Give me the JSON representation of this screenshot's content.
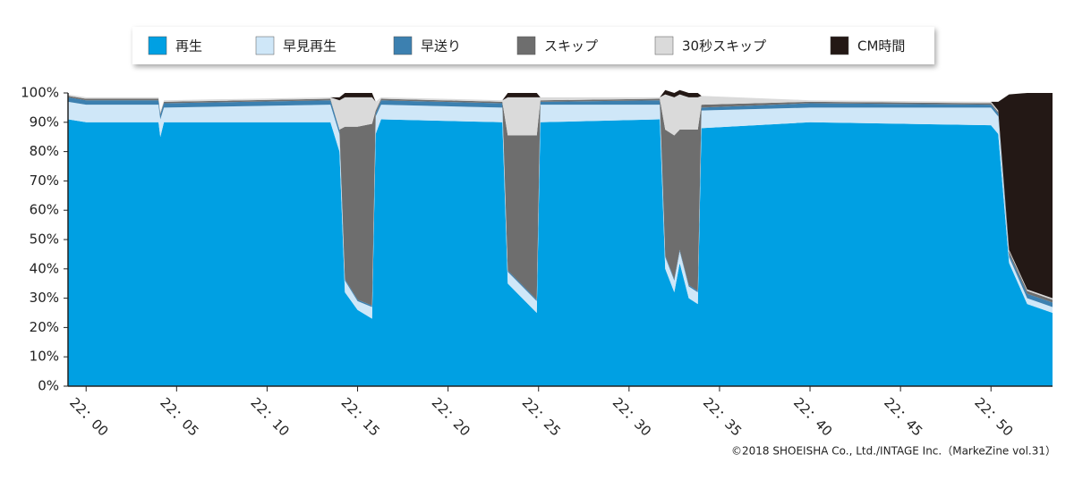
{
  "chart_data": {
    "type": "stacked_area",
    "x": [
      -1,
      0,
      4,
      4.1,
      4.3,
      13.5,
      14,
      14.3,
      15,
      15.8,
      16.0,
      16.3,
      23,
      23.3,
      24.9,
      25.1,
      31.7,
      32,
      32.5,
      32.8,
      33.3,
      33.8,
      34,
      40,
      50,
      50.4,
      51,
      52,
      53.4
    ],
    "xlim": [
      -1,
      53.4
    ],
    "xticks": [
      {
        "value": 0,
        "label": "22：00"
      },
      {
        "value": 5,
        "label": "22：05"
      },
      {
        "value": 10,
        "label": "22：10"
      },
      {
        "value": 15,
        "label": "22：15"
      },
      {
        "value": 20,
        "label": "22：20"
      },
      {
        "value": 25,
        "label": "22：25"
      },
      {
        "value": 30,
        "label": "22：30"
      },
      {
        "value": 35,
        "label": "22：35"
      },
      {
        "value": 40,
        "label": "22：40"
      },
      {
        "value": 45,
        "label": "22：45"
      },
      {
        "value": 50,
        "label": "22：50"
      }
    ],
    "ylim": [
      0,
      100
    ],
    "yticks": [
      {
        "value": 0,
        "label": "0%"
      },
      {
        "value": 10,
        "label": "10%"
      },
      {
        "value": 20,
        "label": "20%"
      },
      {
        "value": 30,
        "label": "30%"
      },
      {
        "value": 40,
        "label": "40%"
      },
      {
        "value": 50,
        "label": "50%"
      },
      {
        "value": 60,
        "label": "60%"
      },
      {
        "value": 70,
        "label": "70%"
      },
      {
        "value": 80,
        "label": "80%"
      },
      {
        "value": 90,
        "label": "90%"
      },
      {
        "value": 100,
        "label": "100%"
      }
    ],
    "series": [
      {
        "name": "再生",
        "color": "#00a0e3",
        "values": [
          91,
          90,
          90,
          85,
          90,
          90,
          80,
          32,
          26,
          23,
          86,
          91,
          90,
          35,
          25,
          90,
          91,
          40,
          32,
          42,
          30,
          28,
          88,
          90,
          89,
          86,
          42,
          28,
          25
        ]
      },
      {
        "name": "早見再生",
        "color": "#cfe7f8",
        "values": [
          6,
          6,
          6,
          6,
          5,
          6,
          6,
          4,
          3,
          4,
          6,
          5,
          5,
          4,
          4,
          6,
          5,
          4,
          4,
          4,
          4,
          4,
          6,
          5,
          6,
          6,
          2,
          2,
          2
        ]
      },
      {
        "name": "早送り",
        "color": "#3c80b0",
        "values": [
          1.5,
          1.5,
          1.5,
          1.5,
          1.5,
          1.5,
          1.5,
          0.5,
          0.5,
          0.5,
          1,
          1.5,
          1.5,
          0.5,
          0.5,
          1,
          1.5,
          0.5,
          0.5,
          0.5,
          0.5,
          0.5,
          1,
          1.5,
          1,
          1,
          1,
          1.5,
          1.5
        ]
      },
      {
        "name": "スキップ",
        "color": "#6e6e6e",
        "values": [
          0.5,
          0.5,
          0.5,
          0.5,
          0.5,
          0.5,
          0,
          52,
          59,
          62,
          1,
          0.5,
          0.5,
          46,
          56,
          0.5,
          0.5,
          43,
          49,
          41,
          53,
          55,
          1,
          0.5,
          0.5,
          0.5,
          1,
          1,
          1
        ]
      },
      {
        "name": "30秒スキップ",
        "color": "#dadada",
        "values": [
          0.5,
          0.5,
          0.5,
          0.5,
          0.5,
          0.5,
          10,
          10,
          10,
          9,
          3,
          0.5,
          0.5,
          13,
          13,
          1,
          0.5,
          12,
          13,
          12,
          11,
          11,
          3,
          0.5,
          0.5,
          0.5,
          0.5,
          0.5,
          0.5
        ]
      },
      {
        "name": "CM時間",
        "color": "#231815",
        "values": [
          0,
          0,
          0,
          0,
          0,
          0,
          1,
          1.5,
          1.5,
          1.5,
          0,
          0,
          0,
          1.5,
          1.5,
          0,
          0,
          1.5,
          1.5,
          1.5,
          1.5,
          1.5,
          0,
          0,
          0,
          3,
          53,
          67,
          70
        ]
      }
    ],
    "source": "©2018 SHOEISHA Co., Ltd./INTAGE Inc.（MarkeZine vol.31）"
  }
}
